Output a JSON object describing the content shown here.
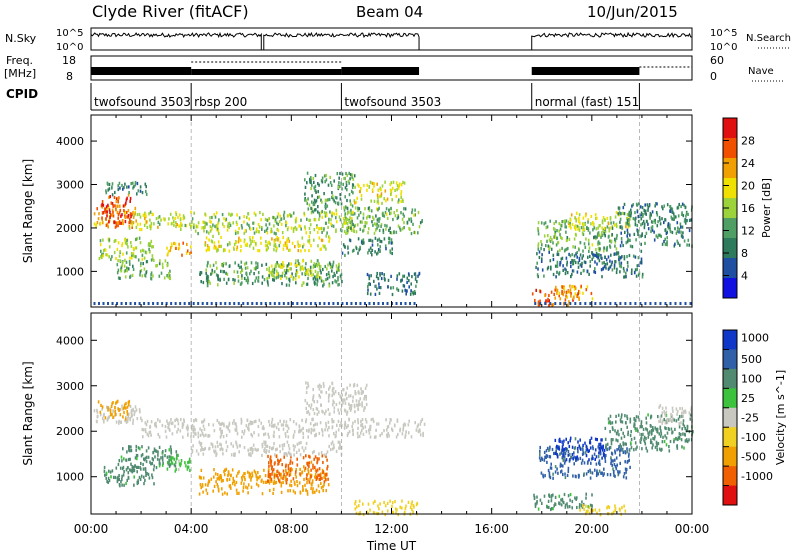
{
  "header": {
    "station": "Clyde River (fitACF)",
    "beam": "Beam 04",
    "date": "10/Jun/2015"
  },
  "panels": {
    "nsky": {
      "label": "N.Sky",
      "ticks": [
        "10^5",
        "10^0"
      ],
      "right_ticks": [
        "10^5",
        "10^0"
      ],
      "legend": "N.Search"
    },
    "freq": {
      "label_top": "Freq.",
      "label_bottom": "[MHz]",
      "ticks": [
        "18",
        "8"
      ],
      "right_ticks": [
        "60",
        "0"
      ],
      "legend": "Nave"
    },
    "cpid": {
      "label": "CPID",
      "modes": [
        {
          "name": "twofsound 3503",
          "start": 0.0,
          "end": 4.0
        },
        {
          "name": "rbsp 200",
          "start": 4.0,
          "end": 10.0
        },
        {
          "name": "twofsound 3503",
          "start": 10.0,
          "end": 13.1
        },
        {
          "name": "normal (fast) 151",
          "start": 17.6,
          "end": 21.9
        }
      ]
    }
  },
  "chart_data": [
    {
      "type": "heatmap",
      "title": "",
      "xlabel": "",
      "ylabel": "Slant Range [km]",
      "xlim": [
        0,
        24
      ],
      "ylim": [
        180,
        4600
      ],
      "yticks": [
        "4000",
        "3000",
        "2000",
        "1000"
      ],
      "colorbar": {
        "label": "Power [dB]",
        "min": 0,
        "max": 32,
        "ticks": [
          "28",
          "24",
          "20",
          "16",
          "12",
          "8",
          "4"
        ],
        "colors": [
          "#1010e0",
          "#1f4fa0",
          "#2e7a5c",
          "#4f9e63",
          "#9cd33a",
          "#f0e000",
          "#f0a000",
          "#f05000",
          "#e01010"
        ]
      },
      "blobs": [
        {
          "t": [
            0.1,
            1.8
          ],
          "r": [
            2050,
            2550
          ],
          "v": 24
        },
        {
          "t": [
            0.4,
            1.6
          ],
          "r": [
            2100,
            2800
          ],
          "v": 28
        },
        {
          "t": [
            0.3,
            2.5
          ],
          "r": [
            1300,
            1800
          ],
          "v": 16
        },
        {
          "t": [
            1.0,
            3.2
          ],
          "r": [
            850,
            1300
          ],
          "v": 14
        },
        {
          "t": [
            0.5,
            2.2
          ],
          "r": [
            2800,
            3100
          ],
          "v": 10
        },
        {
          "t": [
            1.5,
            4.0
          ],
          "r": [
            2000,
            2400
          ],
          "v": 18
        },
        {
          "t": [
            3.0,
            4.0
          ],
          "r": [
            1400,
            1700
          ],
          "v": 22
        },
        {
          "t": [
            4.0,
            10.5
          ],
          "r": [
            1900,
            2400
          ],
          "v": 16
        },
        {
          "t": [
            4.5,
            9.5
          ],
          "r": [
            1500,
            1850
          ],
          "v": 18
        },
        {
          "t": [
            4.3,
            10.0
          ],
          "r": [
            700,
            1250
          ],
          "v": 12
        },
        {
          "t": [
            7.0,
            9.2
          ],
          "r": [
            850,
            1300
          ],
          "v": 17
        },
        {
          "t": [
            8.5,
            10.5
          ],
          "r": [
            2400,
            3300
          ],
          "v": 12
        },
        {
          "t": [
            10.0,
            13.2
          ],
          "r": [
            1900,
            2500
          ],
          "v": 14
        },
        {
          "t": [
            10.5,
            12.5
          ],
          "r": [
            2600,
            3100
          ],
          "v": 18
        },
        {
          "t": [
            10.0,
            12.0
          ],
          "r": [
            1400,
            1800
          ],
          "v": 10
        },
        {
          "t": [
            11.0,
            13.1
          ],
          "r": [
            500,
            1000
          ],
          "v": 8
        },
        {
          "t": [
            17.6,
            19.5
          ],
          "r": [
            250,
            600
          ],
          "v": 26
        },
        {
          "t": [
            18.5,
            20.0
          ],
          "r": [
            400,
            700
          ],
          "v": 22
        },
        {
          "t": [
            17.8,
            21.0
          ],
          "r": [
            1500,
            2200
          ],
          "v": 14
        },
        {
          "t": [
            19.0,
            21.5
          ],
          "r": [
            2000,
            2400
          ],
          "v": 18
        },
        {
          "t": [
            21.0,
            24.0
          ],
          "r": [
            1600,
            2600
          ],
          "v": 10
        },
        {
          "t": [
            17.7,
            22.0
          ],
          "r": [
            900,
            1500
          ],
          "v": 8
        }
      ]
    },
    {
      "type": "heatmap",
      "title": "",
      "xlabel": "Time UT",
      "ylabel": "Slant Range [km]",
      "xlim": [
        0,
        24
      ],
      "ylim": [
        180,
        4600
      ],
      "yticks": [
        "4000",
        "3000",
        "2000",
        "1000"
      ],
      "xticks": [
        "00:00",
        "04:00",
        "08:00",
        "12:00",
        "16:00",
        "20:00",
        "00:00"
      ],
      "colorbar": {
        "label": "Velocity [m s^-1]",
        "levels": [
          "1000",
          "500",
          "100",
          "25",
          "-25",
          "-100",
          "-500",
          "-1000"
        ],
        "colors": [
          "#1038c8",
          "#3060a8",
          "#508a70",
          "#3cc23c",
          "#c8c8c0",
          "#f0d020",
          "#f0a000",
          "#f06000",
          "#e01010"
        ]
      },
      "blobs": [
        {
          "t": [
            0.1,
            2.0
          ],
          "r": [
            2200,
            2600
          ],
          "v": 0
        },
        {
          "t": [
            0.2,
            1.5
          ],
          "r": [
            2300,
            2700
          ],
          "v": -500
        },
        {
          "t": [
            2.0,
            13.3
          ],
          "r": [
            1900,
            2300
          ],
          "v": 0
        },
        {
          "t": [
            1.0,
            3.5
          ],
          "r": [
            1200,
            1700
          ],
          "v": 150
        },
        {
          "t": [
            0.5,
            2.5
          ],
          "r": [
            800,
            1250
          ],
          "v": 150
        },
        {
          "t": [
            2.8,
            4.0
          ],
          "r": [
            1150,
            1450
          ],
          "v": 50
        },
        {
          "t": [
            4.3,
            9.5
          ],
          "r": [
            650,
            1200
          ],
          "v": -500
        },
        {
          "t": [
            7.0,
            9.5
          ],
          "r": [
            900,
            1500
          ],
          "v": -700
        },
        {
          "t": [
            4.0,
            10.0
          ],
          "r": [
            1500,
            1800
          ],
          "v": 0
        },
        {
          "t": [
            8.5,
            11.0
          ],
          "r": [
            2400,
            3100
          ],
          "v": 0
        },
        {
          "t": [
            10.5,
            13.0
          ],
          "r": [
            200,
            500
          ],
          "v": -100
        },
        {
          "t": [
            17.6,
            20.0
          ],
          "r": [
            300,
            650
          ],
          "v": 150
        },
        {
          "t": [
            17.8,
            21.5
          ],
          "r": [
            1000,
            1700
          ],
          "v": 600
        },
        {
          "t": [
            18.5,
            20.5
          ],
          "r": [
            1400,
            1900
          ],
          "v": 1000
        },
        {
          "t": [
            20.5,
            24.0
          ],
          "r": [
            1600,
            2400
          ],
          "v": 150
        },
        {
          "t": [
            22.5,
            24.0
          ],
          "r": [
            2200,
            2600
          ],
          "v": 0
        },
        {
          "t": [
            19.5,
            21.5
          ],
          "r": [
            200,
            400
          ],
          "v": -100
        }
      ]
    }
  ]
}
